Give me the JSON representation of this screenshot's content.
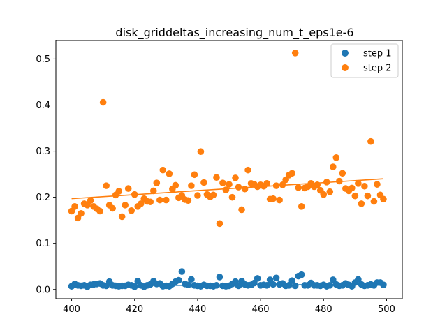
{
  "chart_data": {
    "type": "scatter",
    "title": "disk_griddeltas_increasing_num_t_eps1e-6",
    "xlabel": "",
    "ylabel": "",
    "xlim": [
      395,
      505
    ],
    "ylim": [
      -0.02,
      0.54
    ],
    "xticks": [
      400,
      420,
      440,
      460,
      480,
      500
    ],
    "yticks": [
      0.0,
      0.1,
      0.2,
      0.3,
      0.4,
      0.5
    ],
    "xtick_labels": [
      "400",
      "420",
      "440",
      "460",
      "480",
      "500"
    ],
    "ytick_labels": [
      "0.0",
      "0.1",
      "0.2",
      "0.3",
      "0.4",
      "0.5"
    ],
    "grid": false,
    "legend_position": "top-right",
    "series": [
      {
        "name": "step 1",
        "color": "#1f77b4",
        "x": [
          400,
          401,
          402,
          403,
          404,
          405,
          406,
          407,
          408,
          409,
          410,
          411,
          412,
          413,
          414,
          415,
          416,
          417,
          418,
          419,
          420,
          421,
          422,
          423,
          424,
          425,
          426,
          427,
          428,
          429,
          430,
          431,
          432,
          433,
          434,
          435,
          436,
          437,
          438,
          439,
          440,
          441,
          442,
          443,
          444,
          445,
          446,
          447,
          448,
          449,
          450,
          451,
          452,
          453,
          454,
          455,
          456,
          457,
          458,
          459,
          460,
          461,
          462,
          463,
          464,
          465,
          466,
          467,
          468,
          469,
          470,
          471,
          472,
          473,
          474,
          475,
          476,
          477,
          478,
          479,
          480,
          481,
          482,
          483,
          484,
          485,
          486,
          487,
          488,
          489,
          490,
          491,
          492,
          493,
          494,
          495,
          496,
          497,
          498,
          499
        ],
        "y": [
          0.007,
          0.012,
          0.009,
          0.008,
          0.009,
          0.006,
          0.01,
          0.011,
          0.012,
          0.013,
          0.009,
          0.008,
          0.017,
          0.009,
          0.008,
          0.007,
          0.008,
          0.008,
          0.01,
          0.009,
          0.006,
          0.018,
          0.009,
          0.006,
          0.009,
          0.011,
          0.018,
          0.012,
          0.013,
          0.007,
          0.008,
          0.007,
          0.012,
          0.017,
          0.02,
          0.039,
          0.012,
          0.01,
          0.022,
          0.009,
          0.008,
          0.007,
          0.01,
          0.008,
          0.008,
          0.007,
          0.009,
          0.027,
          0.008,
          0.007,
          0.008,
          0.012,
          0.017,
          0.008,
          0.018,
          0.011,
          0.009,
          0.01,
          0.014,
          0.024,
          0.009,
          0.01,
          0.009,
          0.021,
          0.011,
          0.025,
          0.011,
          0.013,
          0.008,
          0.009,
          0.019,
          0.008,
          0.029,
          0.032,
          0.009,
          0.009,
          0.014,
          0.009,
          0.009,
          0.008,
          0.01,
          0.007,
          0.009,
          0.021,
          0.011,
          0.008,
          0.009,
          0.013,
          0.01,
          0.007,
          0.015,
          0.022,
          0.011,
          0.008,
          0.009,
          0.011,
          0.009,
          0.015,
          0.015,
          0.01
        ],
        "trend": [
          0.008,
          0.011
        ]
      },
      {
        "name": "step 2",
        "color": "#ff7f0e",
        "x": [
          400,
          401,
          402,
          403,
          404,
          405,
          406,
          407,
          408,
          409,
          410,
          411,
          412,
          413,
          414,
          415,
          416,
          417,
          418,
          419,
          420,
          421,
          422,
          423,
          424,
          425,
          426,
          427,
          428,
          429,
          430,
          431,
          432,
          433,
          434,
          435,
          436,
          437,
          438,
          439,
          440,
          441,
          442,
          443,
          444,
          445,
          446,
          447,
          448,
          449,
          450,
          451,
          452,
          453,
          454,
          455,
          456,
          457,
          458,
          459,
          460,
          461,
          462,
          463,
          464,
          465,
          466,
          467,
          468,
          469,
          470,
          471,
          472,
          473,
          474,
          475,
          476,
          477,
          478,
          479,
          480,
          481,
          482,
          483,
          484,
          485,
          486,
          487,
          488,
          489,
          490,
          491,
          492,
          493,
          494,
          495,
          496,
          497,
          498,
          499
        ],
        "y": [
          0.17,
          0.18,
          0.155,
          0.165,
          0.186,
          0.183,
          0.193,
          0.18,
          0.175,
          0.17,
          0.406,
          0.225,
          0.183,
          0.176,
          0.205,
          0.213,
          0.158,
          0.183,
          0.219,
          0.171,
          0.206,
          0.18,
          0.186,
          0.197,
          0.191,
          0.19,
          0.214,
          0.231,
          0.194,
          0.259,
          0.194,
          0.251,
          0.218,
          0.226,
          0.199,
          0.204,
          0.195,
          0.193,
          0.225,
          0.249,
          0.204,
          0.299,
          0.232,
          0.206,
          0.201,
          0.205,
          0.243,
          0.143,
          0.231,
          0.216,
          0.228,
          0.2,
          0.242,
          0.222,
          0.173,
          0.218,
          0.259,
          0.23,
          0.228,
          0.223,
          0.227,
          0.224,
          0.23,
          0.196,
          0.197,
          0.225,
          0.194,
          0.227,
          0.238,
          0.248,
          0.252,
          0.513,
          0.221,
          0.18,
          0.22,
          0.223,
          0.23,
          0.223,
          0.227,
          0.215,
          0.206,
          0.233,
          0.212,
          0.266,
          0.286,
          0.235,
          0.252,
          0.219,
          0.214,
          0.22,
          0.203,
          0.23,
          0.186,
          0.224,
          0.203,
          0.321,
          0.191,
          0.228,
          0.205,
          0.196
        ],
        "trend": [
          0.197,
          0.24
        ]
      }
    ]
  }
}
